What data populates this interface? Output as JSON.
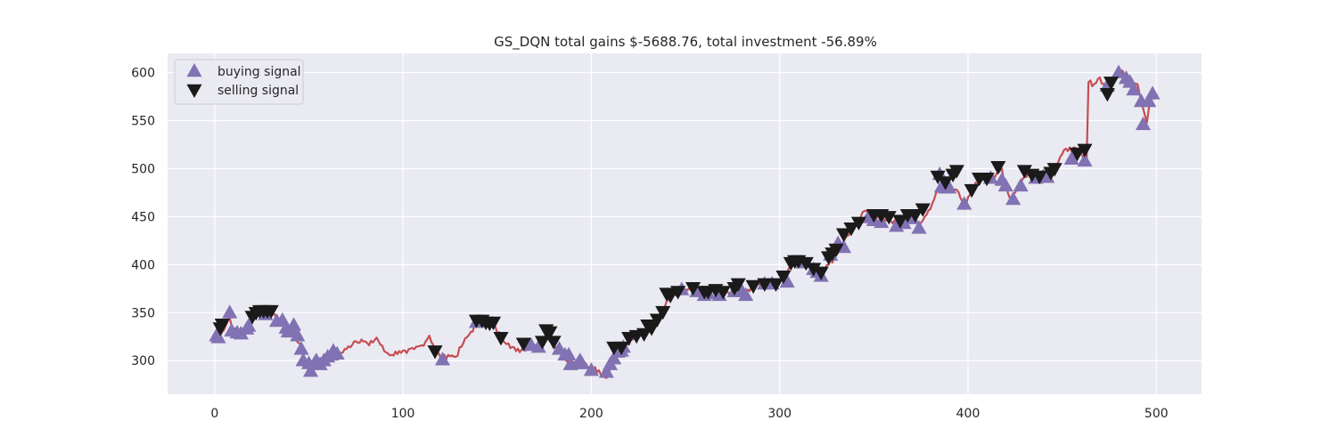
{
  "chart_data": {
    "type": "line",
    "title": "GS_DQN total gains $-5688.76, total investment -56.89%",
    "xlabel": "",
    "ylabel": "",
    "xlim": [
      -25,
      524
    ],
    "ylim": [
      265,
      620
    ],
    "xticks": [
      0,
      100,
      200,
      300,
      400,
      500
    ],
    "yticks": [
      300,
      350,
      400,
      450,
      500,
      550,
      600
    ],
    "grid": true,
    "legend_position": "top-left",
    "colors": {
      "background": "#eaeaf2",
      "grid": "#ffffff",
      "line": "#c44e52",
      "buy": "#8172b3",
      "sell": "#1a1a1a"
    },
    "legend": [
      {
        "label": "buying signal",
        "marker": "triangle-up"
      },
      {
        "label": "selling signal",
        "marker": "triangle-down"
      }
    ],
    "price_anchors": [
      [
        0,
        325
      ],
      [
        4,
        330
      ],
      [
        8,
        345
      ],
      [
        10,
        332
      ],
      [
        14,
        330
      ],
      [
        18,
        336
      ],
      [
        22,
        348
      ],
      [
        26,
        350
      ],
      [
        30,
        348
      ],
      [
        34,
        342
      ],
      [
        38,
        336
      ],
      [
        42,
        328
      ],
      [
        45,
        318
      ],
      [
        48,
        302
      ],
      [
        51,
        292
      ],
      [
        54,
        298
      ],
      [
        58,
        302
      ],
      [
        62,
        308
      ],
      [
        66,
        306
      ],
      [
        70,
        312
      ],
      [
        74,
        320
      ],
      [
        78,
        322
      ],
      [
        82,
        316
      ],
      [
        86,
        324
      ],
      [
        90,
        310
      ],
      [
        94,
        306
      ],
      [
        98,
        310
      ],
      [
        102,
        308
      ],
      [
        106,
        312
      ],
      [
        110,
        316
      ],
      [
        114,
        326
      ],
      [
        118,
        308
      ],
      [
        121,
        302
      ],
      [
        124,
        306
      ],
      [
        128,
        304
      ],
      [
        132,
        318
      ],
      [
        136,
        330
      ],
      [
        140,
        340
      ],
      [
        144,
        338
      ],
      [
        148,
        336
      ],
      [
        152,
        325
      ],
      [
        156,
        318
      ],
      [
        160,
        310
      ],
      [
        164,
        312
      ],
      [
        168,
        316
      ],
      [
        172,
        318
      ],
      [
        176,
        328
      ],
      [
        180,
        318
      ],
      [
        184,
        308
      ],
      [
        188,
        300
      ],
      [
        192,
        296
      ],
      [
        196,
        298
      ],
      [
        200,
        292
      ],
      [
        204,
        290
      ],
      [
        208,
        282
      ],
      [
        211,
        296
      ],
      [
        214,
        308
      ],
      [
        218,
        316
      ],
      [
        222,
        322
      ],
      [
        226,
        326
      ],
      [
        230,
        332
      ],
      [
        234,
        340
      ],
      [
        238,
        352
      ],
      [
        242,
        366
      ],
      [
        246,
        372
      ],
      [
        250,
        374
      ],
      [
        254,
        374
      ],
      [
        258,
        370
      ],
      [
        262,
        372
      ],
      [
        266,
        370
      ],
      [
        270,
        374
      ],
      [
        274,
        370
      ],
      [
        278,
        376
      ],
      [
        282,
        372
      ],
      [
        286,
        376
      ],
      [
        290,
        380
      ],
      [
        294,
        382
      ],
      [
        298,
        380
      ],
      [
        302,
        388
      ],
      [
        306,
        400
      ],
      [
        310,
        404
      ],
      [
        314,
        402
      ],
      [
        318,
        396
      ],
      [
        322,
        392
      ],
      [
        326,
        400
      ],
      [
        330,
        410
      ],
      [
        334,
        424
      ],
      [
        338,
        436
      ],
      [
        342,
        448
      ],
      [
        346,
        456
      ],
      [
        350,
        452
      ],
      [
        354,
        446
      ],
      [
        358,
        448
      ],
      [
        362,
        442
      ],
      [
        366,
        448
      ],
      [
        370,
        450
      ],
      [
        374,
        442
      ],
      [
        378,
        452
      ],
      [
        382,
        468
      ],
      [
        386,
        486
      ],
      [
        390,
        482
      ],
      [
        394,
        478
      ],
      [
        398,
        458
      ],
      [
        402,
        478
      ],
      [
        406,
        488
      ],
      [
        410,
        492
      ],
      [
        414,
        490
      ],
      [
        418,
        500
      ],
      [
        420,
        482
      ],
      [
        422,
        470
      ],
      [
        426,
        478
      ],
      [
        430,
        492
      ],
      [
        434,
        496
      ],
      [
        438,
        490
      ],
      [
        442,
        494
      ],
      [
        446,
        500
      ],
      [
        450,
        515
      ],
      [
        454,
        522
      ],
      [
        458,
        518
      ],
      [
        462,
        510
      ],
      [
        463,
        508
      ],
      [
        464,
        590
      ],
      [
        467,
        588
      ],
      [
        470,
        595
      ],
      [
        474,
        580
      ],
      [
        478,
        596
      ],
      [
        482,
        602
      ],
      [
        486,
        596
      ],
      [
        490,
        588
      ],
      [
        492,
        570
      ],
      [
        494,
        555
      ],
      [
        495,
        548
      ],
      [
        497,
        575
      ],
      [
        499,
        572
      ]
    ],
    "buy_signals": [
      [
        1,
        326
      ],
      [
        2,
        324
      ],
      [
        8,
        350
      ],
      [
        9,
        331
      ],
      [
        12,
        329
      ],
      [
        14,
        328
      ],
      [
        17,
        333
      ],
      [
        18,
        336
      ],
      [
        27,
        348
      ],
      [
        33,
        341
      ],
      [
        36,
        342
      ],
      [
        38,
        334
      ],
      [
        39,
        330
      ],
      [
        41,
        330
      ],
      [
        42,
        337
      ],
      [
        44,
        326
      ],
      [
        46,
        312
      ],
      [
        47,
        300
      ],
      [
        50,
        297
      ],
      [
        51,
        289
      ],
      [
        53,
        297
      ],
      [
        54,
        300
      ],
      [
        56,
        296
      ],
      [
        58,
        300
      ],
      [
        60,
        304
      ],
      [
        62,
        306
      ],
      [
        63,
        310
      ],
      [
        65,
        307
      ],
      [
        121,
        301
      ],
      [
        139,
        340
      ],
      [
        168,
        316
      ],
      [
        172,
        314
      ],
      [
        183,
        312
      ],
      [
        186,
        306
      ],
      [
        188,
        306
      ],
      [
        189,
        296
      ],
      [
        193,
        297
      ],
      [
        194,
        300
      ],
      [
        195,
        297
      ],
      [
        200,
        290
      ],
      [
        208,
        288
      ],
      [
        210,
        296
      ],
      [
        212,
        302
      ],
      [
        214,
        309
      ],
      [
        216,
        310
      ],
      [
        217,
        314
      ],
      [
        248,
        374
      ],
      [
        256,
        372
      ],
      [
        260,
        368
      ],
      [
        262,
        370
      ],
      [
        268,
        368
      ],
      [
        276,
        372
      ],
      [
        280,
        372
      ],
      [
        282,
        368
      ],
      [
        292,
        380
      ],
      [
        296,
        380
      ],
      [
        304,
        382
      ],
      [
        312,
        402
      ],
      [
        318,
        395
      ],
      [
        320,
        392
      ],
      [
        322,
        388
      ],
      [
        327,
        410
      ],
      [
        331,
        422
      ],
      [
        334,
        418
      ],
      [
        347,
        449
      ],
      [
        350,
        446
      ],
      [
        354,
        444
      ],
      [
        362,
        440
      ],
      [
        366,
        443
      ],
      [
        370,
        448
      ],
      [
        374,
        438
      ],
      [
        385,
        494
      ],
      [
        386,
        481
      ],
      [
        388,
        480
      ],
      [
        390,
        480
      ],
      [
        398,
        463
      ],
      [
        412,
        490
      ],
      [
        418,
        488
      ],
      [
        420,
        482
      ],
      [
        424,
        468
      ],
      [
        428,
        482
      ],
      [
        436,
        490
      ],
      [
        440,
        492
      ],
      [
        442,
        491
      ],
      [
        455,
        510
      ],
      [
        462,
        508
      ],
      [
        474,
        586
      ],
      [
        480,
        600
      ],
      [
        484,
        594
      ],
      [
        486,
        590
      ],
      [
        488,
        582
      ],
      [
        492,
        570
      ],
      [
        493,
        546
      ],
      [
        496,
        570
      ],
      [
        498,
        578
      ]
    ],
    "sell_signals": [
      [
        3,
        334
      ],
      [
        4,
        338
      ],
      [
        20,
        346
      ],
      [
        22,
        350
      ],
      [
        24,
        352
      ],
      [
        26,
        352
      ],
      [
        28,
        352
      ],
      [
        30,
        352
      ],
      [
        117,
        310
      ],
      [
        139,
        342
      ],
      [
        142,
        342
      ],
      [
        144,
        340
      ],
      [
        146,
        339
      ],
      [
        148,
        340
      ],
      [
        152,
        324
      ],
      [
        164,
        318
      ],
      [
        174,
        320
      ],
      [
        176,
        332
      ],
      [
        178,
        330
      ],
      [
        180,
        320
      ],
      [
        212,
        314
      ],
      [
        216,
        314
      ],
      [
        220,
        324
      ],
      [
        224,
        326
      ],
      [
        228,
        328
      ],
      [
        230,
        337
      ],
      [
        232,
        334
      ],
      [
        235,
        343
      ],
      [
        238,
        351
      ],
      [
        240,
        370
      ],
      [
        242,
        368
      ],
      [
        246,
        372
      ],
      [
        254,
        376
      ],
      [
        260,
        372
      ],
      [
        262,
        372
      ],
      [
        266,
        374
      ],
      [
        270,
        372
      ],
      [
        276,
        376
      ],
      [
        278,
        380
      ],
      [
        286,
        378
      ],
      [
        292,
        380
      ],
      [
        298,
        380
      ],
      [
        302,
        388
      ],
      [
        306,
        402
      ],
      [
        308,
        404
      ],
      [
        310,
        404
      ],
      [
        314,
        402
      ],
      [
        318,
        396
      ],
      [
        322,
        392
      ],
      [
        326,
        408
      ],
      [
        328,
        412
      ],
      [
        330,
        416
      ],
      [
        334,
        432
      ],
      [
        338,
        438
      ],
      [
        342,
        444
      ],
      [
        350,
        452
      ],
      [
        354,
        452
      ],
      [
        358,
        450
      ],
      [
        364,
        446
      ],
      [
        368,
        452
      ],
      [
        372,
        452
      ],
      [
        376,
        458
      ],
      [
        384,
        492
      ],
      [
        388,
        486
      ],
      [
        392,
        494
      ],
      [
        394,
        498
      ],
      [
        402,
        478
      ],
      [
        406,
        490
      ],
      [
        410,
        490
      ],
      [
        416,
        502
      ],
      [
        430,
        498
      ],
      [
        434,
        494
      ],
      [
        438,
        492
      ],
      [
        444,
        496
      ],
      [
        446,
        500
      ],
      [
        458,
        516
      ],
      [
        462,
        520
      ],
      [
        474,
        578
      ],
      [
        476,
        590
      ]
    ]
  }
}
